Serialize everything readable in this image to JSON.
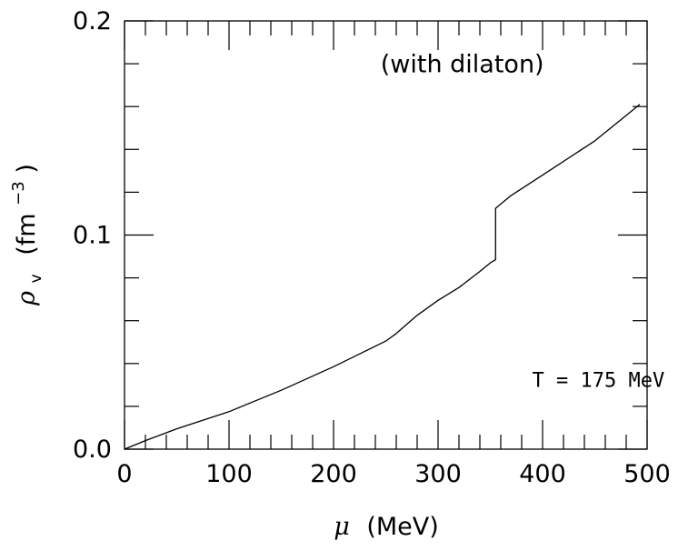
{
  "chart_data": {
    "type": "line",
    "title": "",
    "xlabel": "μ (MeV)",
    "xlabel_symbol": "μ",
    "xlabel_unit": "(MeV)",
    "ylabel": "ρv (fm−3)",
    "ylabel_symbol": "ρ",
    "ylabel_subscript": "v",
    "ylabel_unit_base": "(fm",
    "ylabel_unit_exp": "−3",
    "ylabel_unit_close": ")",
    "xlim": [
      0,
      500
    ],
    "ylim": [
      0.0,
      0.2
    ],
    "x_tick_labels": [
      "0",
      "100",
      "200",
      "300",
      "400",
      "500"
    ],
    "x_tick_values": [
      0,
      100,
      200,
      300,
      400,
      500
    ],
    "y_tick_labels": [
      "0.0",
      "0.1",
      "0.2"
    ],
    "y_tick_values": [
      0.0,
      0.1,
      0.2
    ],
    "x_minor_step": 20,
    "y_minor_step": 0.02,
    "grid": false,
    "annotations": [
      {
        "text": "(with dilaton)",
        "x": 245,
        "y": 0.176
      },
      {
        "text": "T = 175 MeV",
        "x": 390,
        "y": 0.029
      }
    ],
    "series": [
      {
        "x": [
          0,
          20,
          50,
          100,
          150,
          200,
          250,
          260,
          280,
          300,
          320,
          340,
          350,
          355,
          355,
          360,
          370,
          400,
          450,
          493
        ],
        "y": [
          0.0,
          0.004,
          0.0095,
          0.0175,
          0.0275,
          0.0385,
          0.0505,
          0.054,
          0.0625,
          0.0695,
          0.0755,
          0.083,
          0.087,
          0.0885,
          0.1125,
          0.1145,
          0.1185,
          0.128,
          0.144,
          0.161
        ]
      }
    ]
  }
}
